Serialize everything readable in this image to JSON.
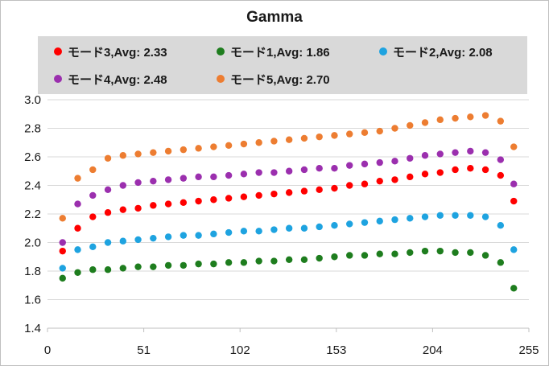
{
  "chart_data": {
    "type": "scatter",
    "title": "Gamma",
    "xlabel": "",
    "ylabel": "",
    "xlim": [
      0,
      255
    ],
    "ylim": [
      1.4,
      3.0
    ],
    "x_ticks": [
      "0",
      "51",
      "102",
      "153",
      "204",
      "255"
    ],
    "y_ticks": [
      "3.0",
      "2.8",
      "2.6",
      "2.4",
      "2.2",
      "2.0",
      "1.8",
      "1.6",
      "1.4"
    ],
    "grid": "horizontal",
    "legend_position": "top",
    "x": [
      8,
      16,
      24,
      32,
      40,
      48,
      56,
      64,
      72,
      80,
      88,
      96,
      104,
      112,
      120,
      128,
      136,
      144,
      152,
      160,
      168,
      176,
      184,
      192,
      200,
      208,
      216,
      224,
      232,
      240,
      247
    ],
    "series": [
      {
        "name": "モード3,Avg: 2.33",
        "color": "#ff0000",
        "values": [
          1.94,
          2.1,
          2.18,
          2.21,
          2.23,
          2.24,
          2.26,
          2.27,
          2.28,
          2.29,
          2.3,
          2.31,
          2.32,
          2.33,
          2.34,
          2.35,
          2.36,
          2.37,
          2.38,
          2.4,
          2.41,
          2.43,
          2.44,
          2.46,
          2.48,
          2.49,
          2.51,
          2.52,
          2.51,
          2.47,
          2.29
        ]
      },
      {
        "name": "モード1,Avg: 1.86",
        "color": "#1e7d1e",
        "values": [
          1.75,
          1.79,
          1.81,
          1.81,
          1.82,
          1.83,
          1.83,
          1.84,
          1.84,
          1.85,
          1.85,
          1.86,
          1.86,
          1.87,
          1.87,
          1.88,
          1.88,
          1.89,
          1.9,
          1.91,
          1.91,
          1.92,
          1.92,
          1.93,
          1.94,
          1.94,
          1.93,
          1.93,
          1.91,
          1.86,
          1.68
        ]
      },
      {
        "name": "モード2,Avg: 2.08",
        "color": "#1ea3e0",
        "values": [
          1.82,
          1.95,
          1.97,
          2.0,
          2.01,
          2.02,
          2.03,
          2.04,
          2.05,
          2.05,
          2.06,
          2.07,
          2.08,
          2.08,
          2.09,
          2.1,
          2.1,
          2.11,
          2.12,
          2.13,
          2.14,
          2.15,
          2.16,
          2.17,
          2.18,
          2.19,
          2.19,
          2.19,
          2.18,
          2.12,
          1.95
        ]
      },
      {
        "name": "モード4,Avg: 2.48",
        "color": "#9b2fae",
        "values": [
          2.0,
          2.27,
          2.33,
          2.37,
          2.4,
          2.42,
          2.43,
          2.44,
          2.45,
          2.46,
          2.46,
          2.47,
          2.48,
          2.49,
          2.49,
          2.5,
          2.51,
          2.52,
          2.52,
          2.54,
          2.55,
          2.56,
          2.57,
          2.59,
          2.61,
          2.62,
          2.63,
          2.64,
          2.63,
          2.58,
          2.41
        ]
      },
      {
        "name": "モード5,Avg: 2.70",
        "color": "#ed7d31",
        "values": [
          2.17,
          2.45,
          2.51,
          2.59,
          2.61,
          2.62,
          2.63,
          2.64,
          2.65,
          2.66,
          2.67,
          2.68,
          2.69,
          2.7,
          2.71,
          2.72,
          2.73,
          2.74,
          2.75,
          2.76,
          2.77,
          2.78,
          2.8,
          2.82,
          2.84,
          2.86,
          2.87,
          2.88,
          2.89,
          2.85,
          2.67
        ]
      }
    ]
  }
}
